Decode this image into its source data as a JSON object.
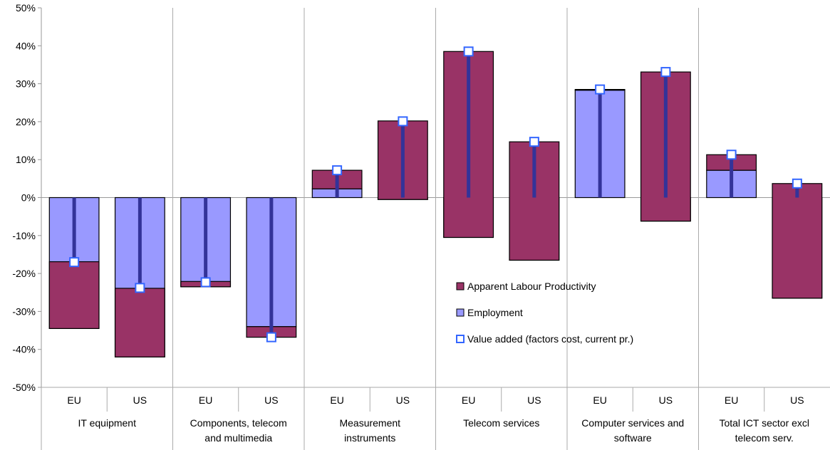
{
  "chart_data": {
    "type": "bar",
    "stacked": true,
    "groups": [
      {
        "label": "IT equipment",
        "subcategories": [
          "EU",
          "US"
        ]
      },
      {
        "label": "Components, telecom and multimedia",
        "subcategories": [
          "EU",
          "US"
        ]
      },
      {
        "label": "Measurement instruments",
        "subcategories": [
          "EU",
          "US"
        ]
      },
      {
        "label": "Telecom services",
        "subcategories": [
          "EU",
          "US"
        ]
      },
      {
        "label": "Computer services and software",
        "subcategories": [
          "EU",
          "US"
        ]
      },
      {
        "label": "Total  ICT sector excl telecom serv.",
        "subcategories": [
          "EU",
          "US"
        ]
      }
    ],
    "group_label_lines": [
      [
        "IT equipment"
      ],
      [
        "Components, telecom",
        "and multimedia"
      ],
      [
        "Measurement",
        "instruments"
      ],
      [
        "Telecom services"
      ],
      [
        "Computer services and",
        "software"
      ],
      [
        "Total  ICT sector excl",
        "telecom serv."
      ]
    ],
    "categories": [
      "EU",
      "US",
      "EU",
      "US",
      "EU",
      "US",
      "EU",
      "US",
      "EU",
      "US",
      "EU",
      "US"
    ],
    "series": [
      {
        "name": "Employment",
        "kind": "bar",
        "color": "#9999ff",
        "values": [
          -34.5,
          -42,
          -23.5,
          -34,
          2.3,
          -0.5,
          -10.5,
          -16.5,
          28.3,
          -6.2,
          7.2,
          -26.5
        ]
      },
      {
        "name": "Apparent Labour Productivity",
        "kind": "bar",
        "color": "#993366",
        "values": [
          17.6,
          18.1,
          1.4,
          -2.8,
          4.9,
          20.7,
          49,
          31.2,
          0.2,
          39.3,
          4.1,
          30.2
        ]
      },
      {
        "name": "Value added (factors cost, current pr.)",
        "kind": "marker",
        "color": "#ffffff",
        "stroke": "#3366ff",
        "line_color": "#333399",
        "values": [
          -17,
          -23.8,
          -22.3,
          -36.8,
          7.2,
          20.1,
          38.5,
          14.7,
          28.5,
          33.1,
          11.3,
          3.7
        ]
      }
    ],
    "legend_order": [
      "Apparent Labour Productivity",
      "Employment",
      "Value added (factors cost, current pr.)"
    ],
    "legend_position": "center-right",
    "y_ticks": [
      "50%",
      "40%",
      "30%",
      "20%",
      "10%",
      "0%",
      "-10%",
      "-20%",
      "-30%",
      "-40%",
      "-50%"
    ],
    "ylim": [
      -50,
      50
    ],
    "grid": false,
    "colors": {
      "axis": "#999999",
      "bar_outline": "#000000"
    }
  }
}
